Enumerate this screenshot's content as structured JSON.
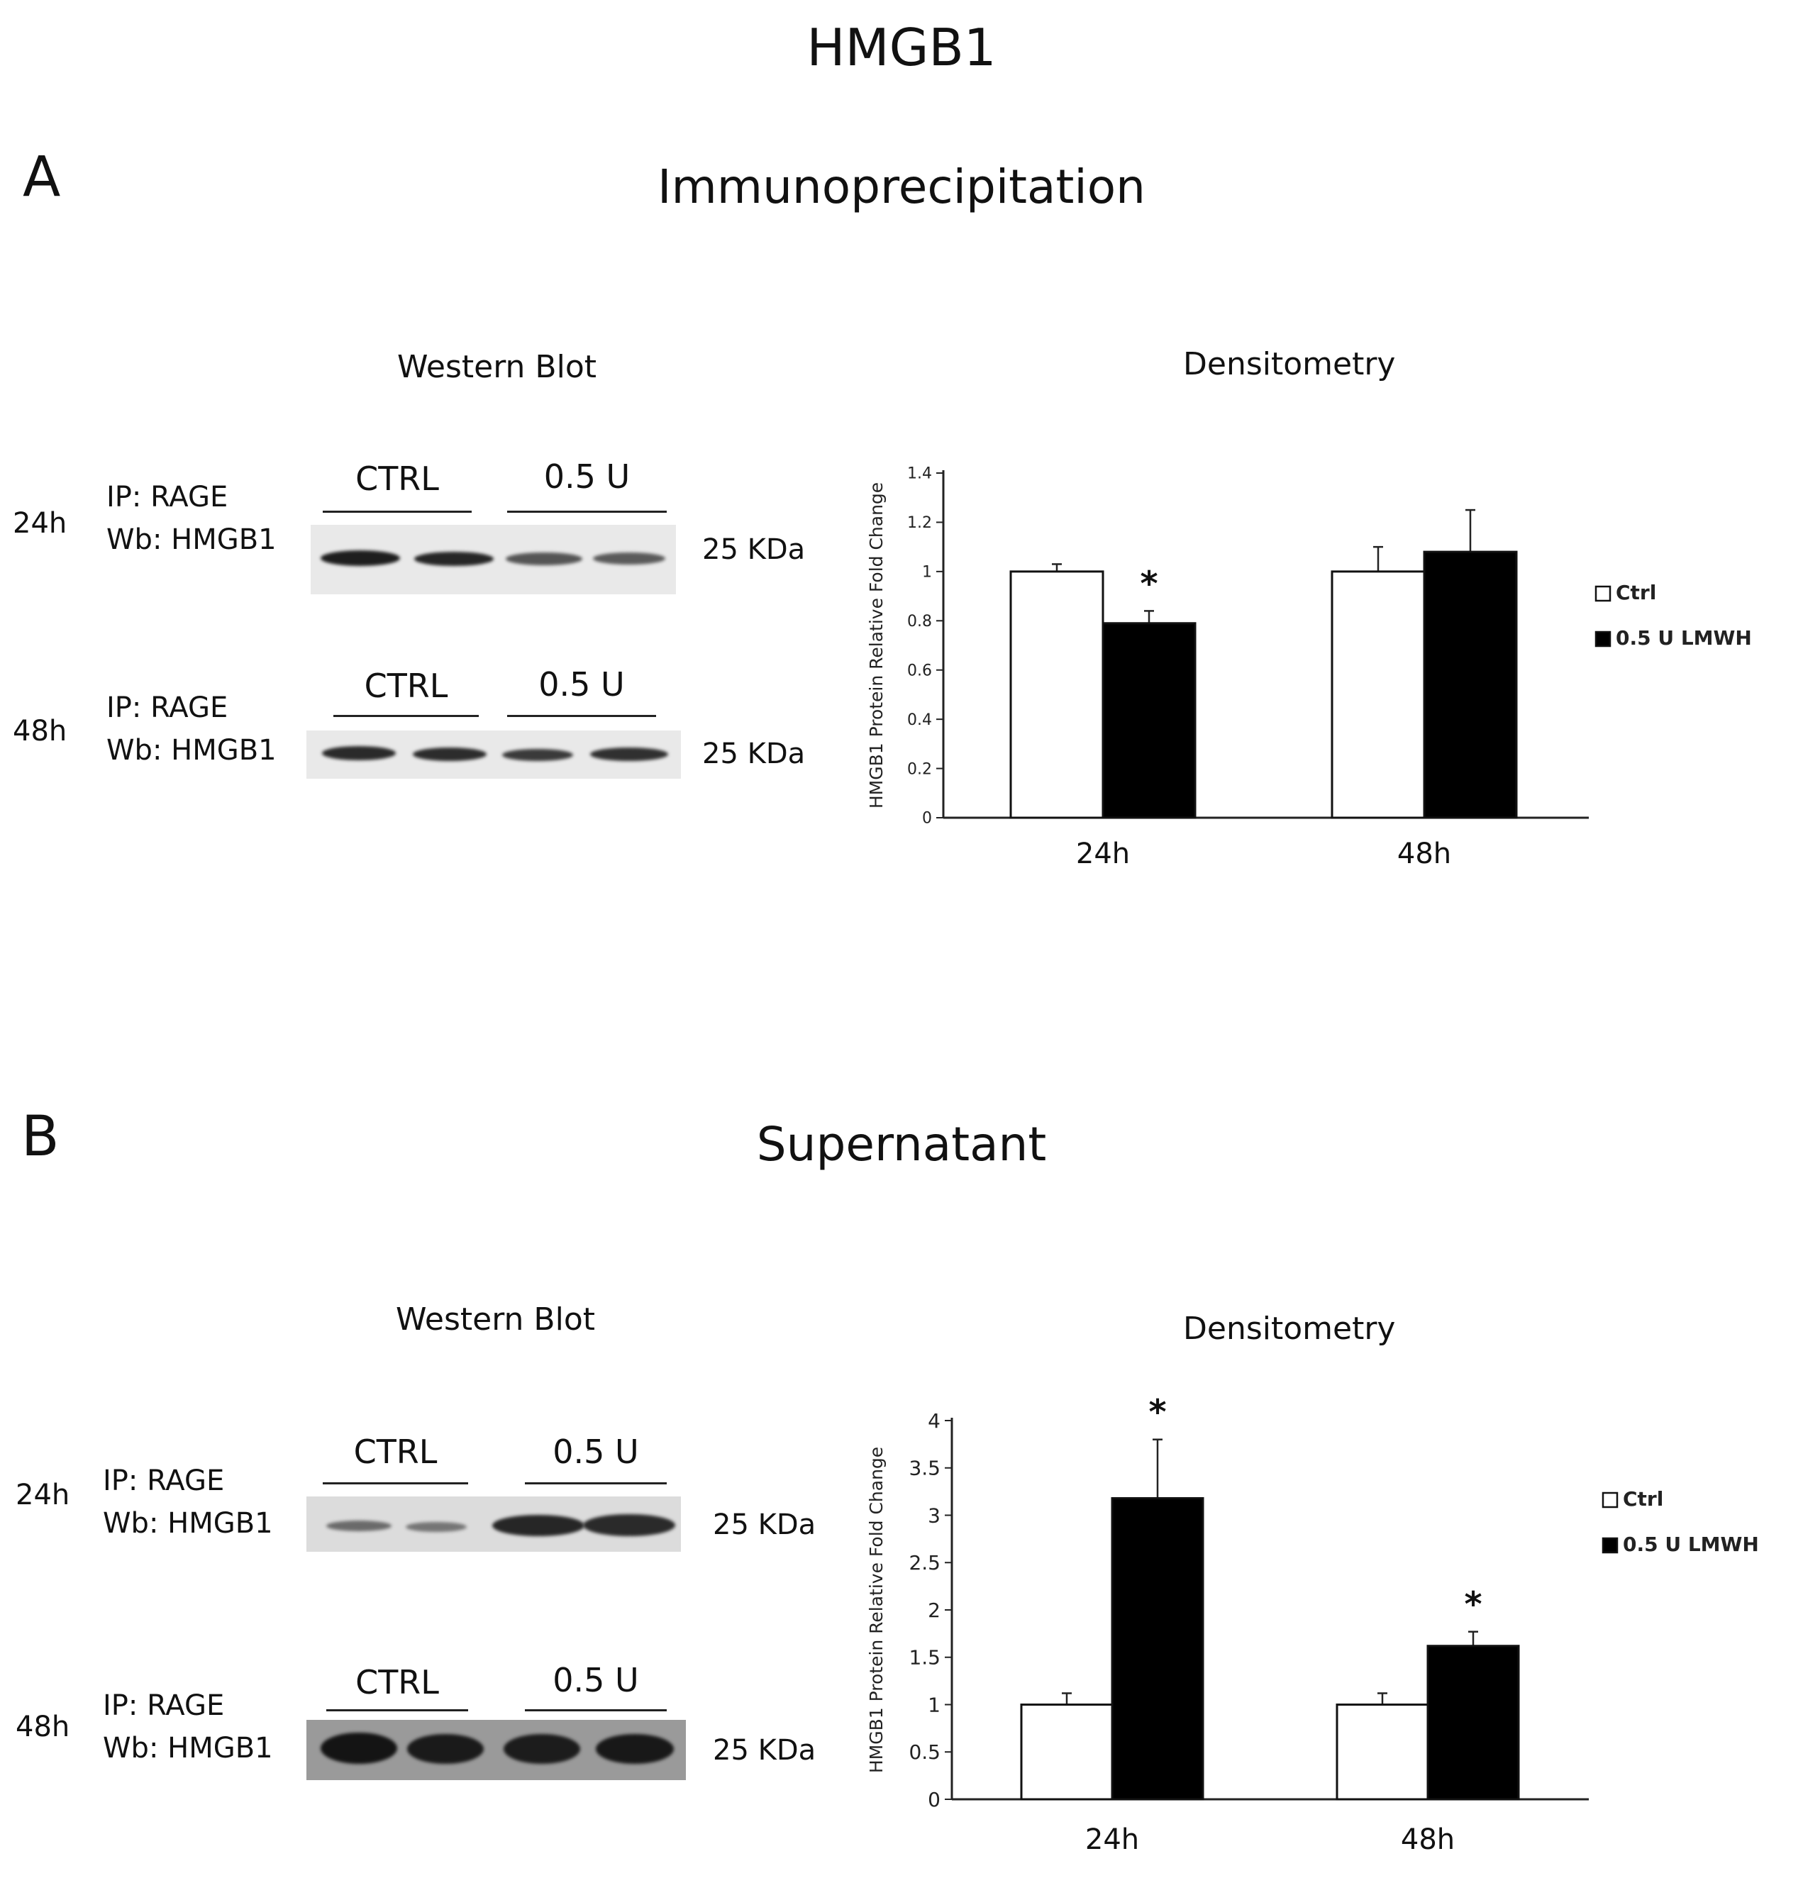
{
  "figure": {
    "title": "HMGB1"
  },
  "panels": [
    {
      "letter": "A",
      "title": "Immunoprecipitation",
      "blot": {
        "title": "Western Blot",
        "rows": [
          {
            "time": "24h",
            "ip": "IP: RAGE",
            "wb": "Wb: HMGB1",
            "groups": [
              "CTRL",
              "0.5 U"
            ],
            "mw": "25 KDa"
          },
          {
            "time": "48h",
            "ip": "IP: RAGE",
            "wb": "Wb: HMGB1",
            "groups": [
              "CTRL",
              "0.5 U"
            ],
            "mw": "25 KDa"
          }
        ]
      },
      "densitometry_title": "Densitometry"
    },
    {
      "letter": "B",
      "title": "Supernatant",
      "blot": {
        "title": "Western Blot",
        "rows": [
          {
            "time": "24h",
            "ip": "IP: RAGE",
            "wb": "Wb: HMGB1",
            "groups": [
              "CTRL",
              "0.5 U"
            ],
            "mw": "25 KDa"
          },
          {
            "time": "48h",
            "ip": "IP: RAGE",
            "wb": "Wb: HMGB1",
            "groups": [
              "CTRL",
              "0.5 U"
            ],
            "mw": "25 KDa"
          }
        ]
      },
      "densitometry_title": "Densitometry"
    }
  ],
  "chart_data": [
    {
      "type": "bar",
      "categories": [
        "24h",
        "48h"
      ],
      "ylabel": "HMGB1 Protein Relative Fold Change",
      "ylim": [
        0,
        1.4
      ],
      "yticks": [
        "0",
        "0.2",
        "0.4",
        "0.6",
        "0.8",
        "1",
        "1.2",
        "1.4"
      ],
      "legend_position": "right",
      "series": [
        {
          "name": "Ctrl",
          "color": "#ffffff",
          "values": [
            1.0,
            1.0
          ],
          "errors": [
            0.03,
            0.1
          ]
        },
        {
          "name": "0.5 U LMWH",
          "color": "#000000",
          "values": [
            0.79,
            1.08
          ],
          "errors": [
            0.05,
            0.17
          ]
        }
      ],
      "significance": [
        {
          "category": "24h",
          "series": "0.5 U LMWH",
          "mark": "*"
        }
      ]
    },
    {
      "type": "bar",
      "categories": [
        "24h",
        "48h"
      ],
      "ylabel": "HMGB1 Protein Relative Fold Change",
      "ylim": [
        0,
        4
      ],
      "yticks": [
        "0",
        "0.5",
        "1",
        "1.5",
        "2",
        "2.5",
        "3",
        "3.5",
        "4"
      ],
      "legend_position": "right",
      "series": [
        {
          "name": "Ctrl",
          "color": "#ffffff",
          "values": [
            1.0,
            1.0
          ],
          "errors": [
            0.12,
            0.12
          ]
        },
        {
          "name": "0.5 U LMWH",
          "color": "#000000",
          "values": [
            3.18,
            1.62
          ],
          "errors": [
            0.62,
            0.15
          ]
        }
      ],
      "significance": [
        {
          "category": "24h",
          "series": "0.5 U LMWH",
          "mark": "*"
        },
        {
          "category": "48h",
          "series": "0.5 U LMWH",
          "mark": "*"
        }
      ]
    }
  ]
}
